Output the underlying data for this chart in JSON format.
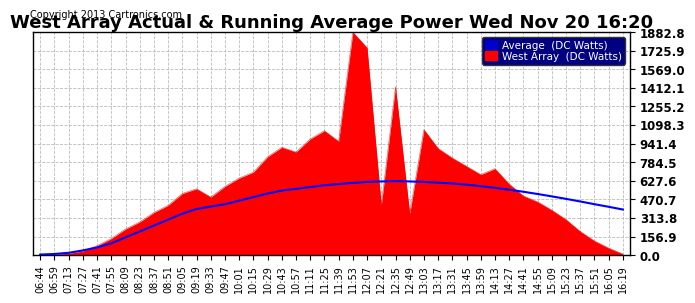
{
  "title": "West Array Actual & Running Average Power Wed Nov 20 16:20",
  "copyright": "Copyright 2013 Cartronics.com",
  "legend_labels": [
    "Average  (DC Watts)",
    "West Array  (DC Watts)"
  ],
  "legend_colors": [
    "#0000ff",
    "#ff0000"
  ],
  "ytick_values": [
    0.0,
    156.9,
    313.8,
    470.7,
    627.6,
    784.5,
    941.4,
    1098.3,
    1255.2,
    1412.1,
    1569.0,
    1725.9,
    1882.8
  ],
  "ymax": 1882.8,
  "ymin": 0.0,
  "background_color": "#ffffff",
  "plot_bg_color": "#ffffff",
  "grid_color": "#bbbbbb",
  "fill_color": "#ff0000",
  "avg_line_color": "#0000ff",
  "xtick_labels": [
    "06:44",
    "06:59",
    "07:13",
    "07:27",
    "07:41",
    "07:55",
    "08:09",
    "08:23",
    "08:37",
    "08:51",
    "09:05",
    "09:19",
    "09:33",
    "09:47",
    "10:01",
    "10:15",
    "10:29",
    "10:43",
    "10:57",
    "11:11",
    "11:25",
    "11:39",
    "11:53",
    "12:07",
    "12:21",
    "12:35",
    "12:49",
    "13:03",
    "13:17",
    "13:31",
    "13:45",
    "13:59",
    "14:13",
    "14:27",
    "14:41",
    "14:55",
    "15:09",
    "15:23",
    "15:37",
    "15:51",
    "16:05",
    "16:19"
  ],
  "num_points": 42,
  "title_fontsize": 13,
  "copyright_fontsize": 7,
  "tick_fontsize": 7,
  "ytick_fontsize": 8.5,
  "west_array": [
    5,
    8,
    15,
    35,
    80,
    140,
    220,
    280,
    360,
    420,
    520,
    560,
    490,
    580,
    650,
    700,
    830,
    910,
    870,
    980,
    1050,
    960,
    1882,
    1750,
    420,
    1420,
    350,
    1060,
    900,
    820,
    750,
    680,
    730,
    600,
    500,
    450,
    380,
    300,
    200,
    120,
    60,
    10
  ],
  "avg_values": [
    5,
    10,
    20,
    40,
    65,
    100,
    150,
    200,
    250,
    300,
    350,
    390,
    410,
    430,
    460,
    490,
    520,
    545,
    560,
    575,
    590,
    600,
    610,
    618,
    622,
    625,
    622,
    618,
    612,
    605,
    595,
    582,
    568,
    552,
    535,
    516,
    496,
    475,
    453,
    430,
    408,
    385
  ]
}
